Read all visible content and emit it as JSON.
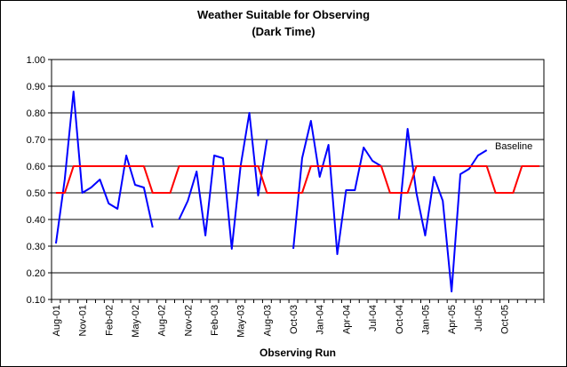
{
  "chart_data": {
    "type": "line",
    "title": "Weather Suitable for Observing",
    "subtitle": "(Dark Time)",
    "xlabel": "Observing Run",
    "ylabel": "",
    "ylim": [
      0.1,
      1.0
    ],
    "y_ticks": [
      "0.10",
      "0.20",
      "0.30",
      "0.40",
      "0.50",
      "0.60",
      "0.70",
      "0.80",
      "0.90",
      "1.00"
    ],
    "x_tick_labels": [
      "Aug-01",
      "Nov-01",
      "Feb-02",
      "May-02",
      "Aug-02",
      "Nov-02",
      "Feb-03",
      "May-03",
      "Aug-03",
      "Oct-03",
      "Jan-04",
      "Apr-04",
      "Jul-04",
      "Oct-04",
      "Jan-05",
      "Apr-05",
      "Jul-05",
      "Oct-05"
    ],
    "grid": true,
    "annotation": "Baseline",
    "series": [
      {
        "color": "#0000ff",
        "values": [
          0.31,
          0.55,
          0.88,
          0.5,
          0.52,
          0.55,
          0.46,
          0.44,
          0.64,
          0.53,
          0.52,
          0.37,
          null,
          null,
          0.4,
          0.47,
          0.58,
          0.34,
          0.64,
          0.63,
          0.29,
          0.6,
          0.8,
          0.49,
          0.7,
          null,
          null,
          0.29,
          0.63,
          0.77,
          0.56,
          0.68,
          0.27,
          0.51,
          0.51,
          0.67,
          0.62,
          0.6,
          null,
          0.4,
          0.74,
          0.5,
          0.34,
          0.56,
          0.47,
          0.13,
          0.57,
          0.59,
          0.64,
          0.66,
          null,
          null,
          null,
          null,
          null,
          null
        ]
      },
      {
        "color": "#ff0000",
        "values": [
          0.5,
          0.5,
          0.6,
          0.6,
          0.6,
          0.6,
          0.6,
          0.6,
          0.6,
          0.6,
          0.6,
          0.5,
          0.5,
          0.5,
          0.6,
          0.6,
          0.6,
          0.6,
          0.6,
          0.6,
          0.6,
          0.6,
          0.6,
          0.6,
          0.5,
          0.5,
          0.5,
          0.5,
          0.5,
          0.6,
          0.6,
          0.6,
          0.6,
          0.6,
          0.6,
          0.6,
          0.6,
          0.6,
          0.5,
          0.5,
          0.5,
          0.6,
          0.6,
          0.6,
          0.6,
          0.6,
          0.6,
          0.6,
          0.6,
          0.6,
          0.5,
          0.5,
          0.5,
          0.6,
          0.6,
          0.6
        ]
      }
    ]
  }
}
